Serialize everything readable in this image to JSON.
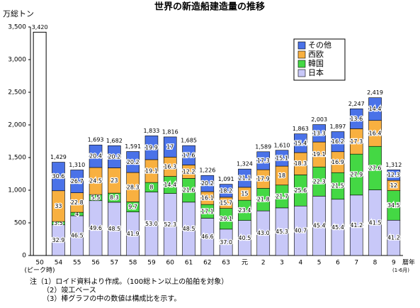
{
  "chart_data": {
    "type": "stacked_bar_share",
    "title": "世界の新造船建造量の推移",
    "y_label": "万総トン",
    "x_label": "暦年",
    "categories": [
      "50",
      "54",
      "55",
      "56",
      "57",
      "58",
      "59",
      "60",
      "61",
      "62",
      "63",
      "元",
      "2",
      "3",
      "4",
      "5",
      "6",
      "7",
      "8",
      "9"
    ],
    "peak_note": "(ピーク時)",
    "period_note": "(1-6月)",
    "ylim": [
      0,
      3500
    ],
    "yticks": [
      0,
      500,
      {
        "value": 1000,
        "label": "1,000"
      },
      {
        "value": 1500,
        "label": "1,500"
      },
      {
        "value": 2000,
        "label": "2,000"
      },
      {
        "value": 2500,
        "label": "2,500"
      },
      {
        "value": 3000,
        "label": "3,000"
      },
      {
        "value": 3500,
        "label": "3,500"
      }
    ],
    "totals": {
      "values": [
        3420,
        1429,
        1310,
        1693,
        1682,
        1591,
        1833,
        1816,
        1685,
        1226,
        1091,
        1324,
        1589,
        1610,
        1863,
        2003,
        1897,
        2247,
        2419,
        1312
      ],
      "value_labels": [
        "3,420",
        "1,429",
        "1,310",
        "1,693",
        "1,682",
        "1,591",
        "1,833",
        "1,816",
        "1,685",
        "1,226",
        "1,091",
        "1,324",
        "1,589",
        "1,610",
        "1,863",
        "2,003",
        "1,897",
        "2,247",
        "2,419",
        "1,312"
      ]
    },
    "series": [
      {
        "name": "日本",
        "color": "#c8c8f8",
        "values": [
          null,
          32.9,
          46.5,
          49.6,
          48.5,
          41.9,
          53.0,
          52.3,
          48.5,
          46.6,
          37.0,
          40.5,
          43.0,
          45.3,
          40.7,
          45.4,
          45.4,
          41.2,
          41.5,
          41.2
        ],
        "value_labels": [
          null,
          "32.9",
          "46.5",
          "49.6",
          "48.5",
          "41.9",
          "53.0",
          "52.3",
          "48.5",
          "46.6",
          "37.0",
          "40.5",
          "43.0",
          "45.3",
          "40.7",
          "45.4",
          "45.4",
          "41.2",
          "41.5",
          "41.2"
        ]
      },
      {
        "name": "韓国",
        "color": "#44d844",
        "values": [
          null,
          3.5,
          4.0,
          5.5,
          8.3,
          9.7,
          8.0,
          14.4,
          21.6,
          17.1,
          29.1,
          23.4,
          21.8,
          21.7,
          25.6,
          22.3,
          21.5,
          27.9,
          27.6,
          34.5
        ]
      },
      {
        "name": "西欧",
        "color": "#f8b040",
        "values": [
          null,
          33.0,
          22.8,
          24.5,
          23.0,
          28.3,
          19.1,
          16.3,
          12.2,
          16.1,
          15.7,
          15.0,
          17.9,
          18.0,
          18.3,
          19.1,
          16.9,
          17.3,
          16.4,
          12.0
        ]
      },
      {
        "name": "その他",
        "color": "#4a72e8",
        "values": [
          null,
          30.6,
          26.7,
          20.4,
          20.2,
          20.2,
          19.9,
          17.0,
          17.6,
          20.2,
          18.2,
          21.1,
          17.3,
          15.1,
          15.4,
          13.3,
          16.2,
          13.6,
          14.4,
          12.3
        ]
      }
    ],
    "notes": [
      "注（1）ロイド資料より作成。（100総トン以上の船舶を対象）",
      "（2）竣工ベース",
      "（3）棒グラフの中の数値は構成比を示す。"
    ]
  }
}
